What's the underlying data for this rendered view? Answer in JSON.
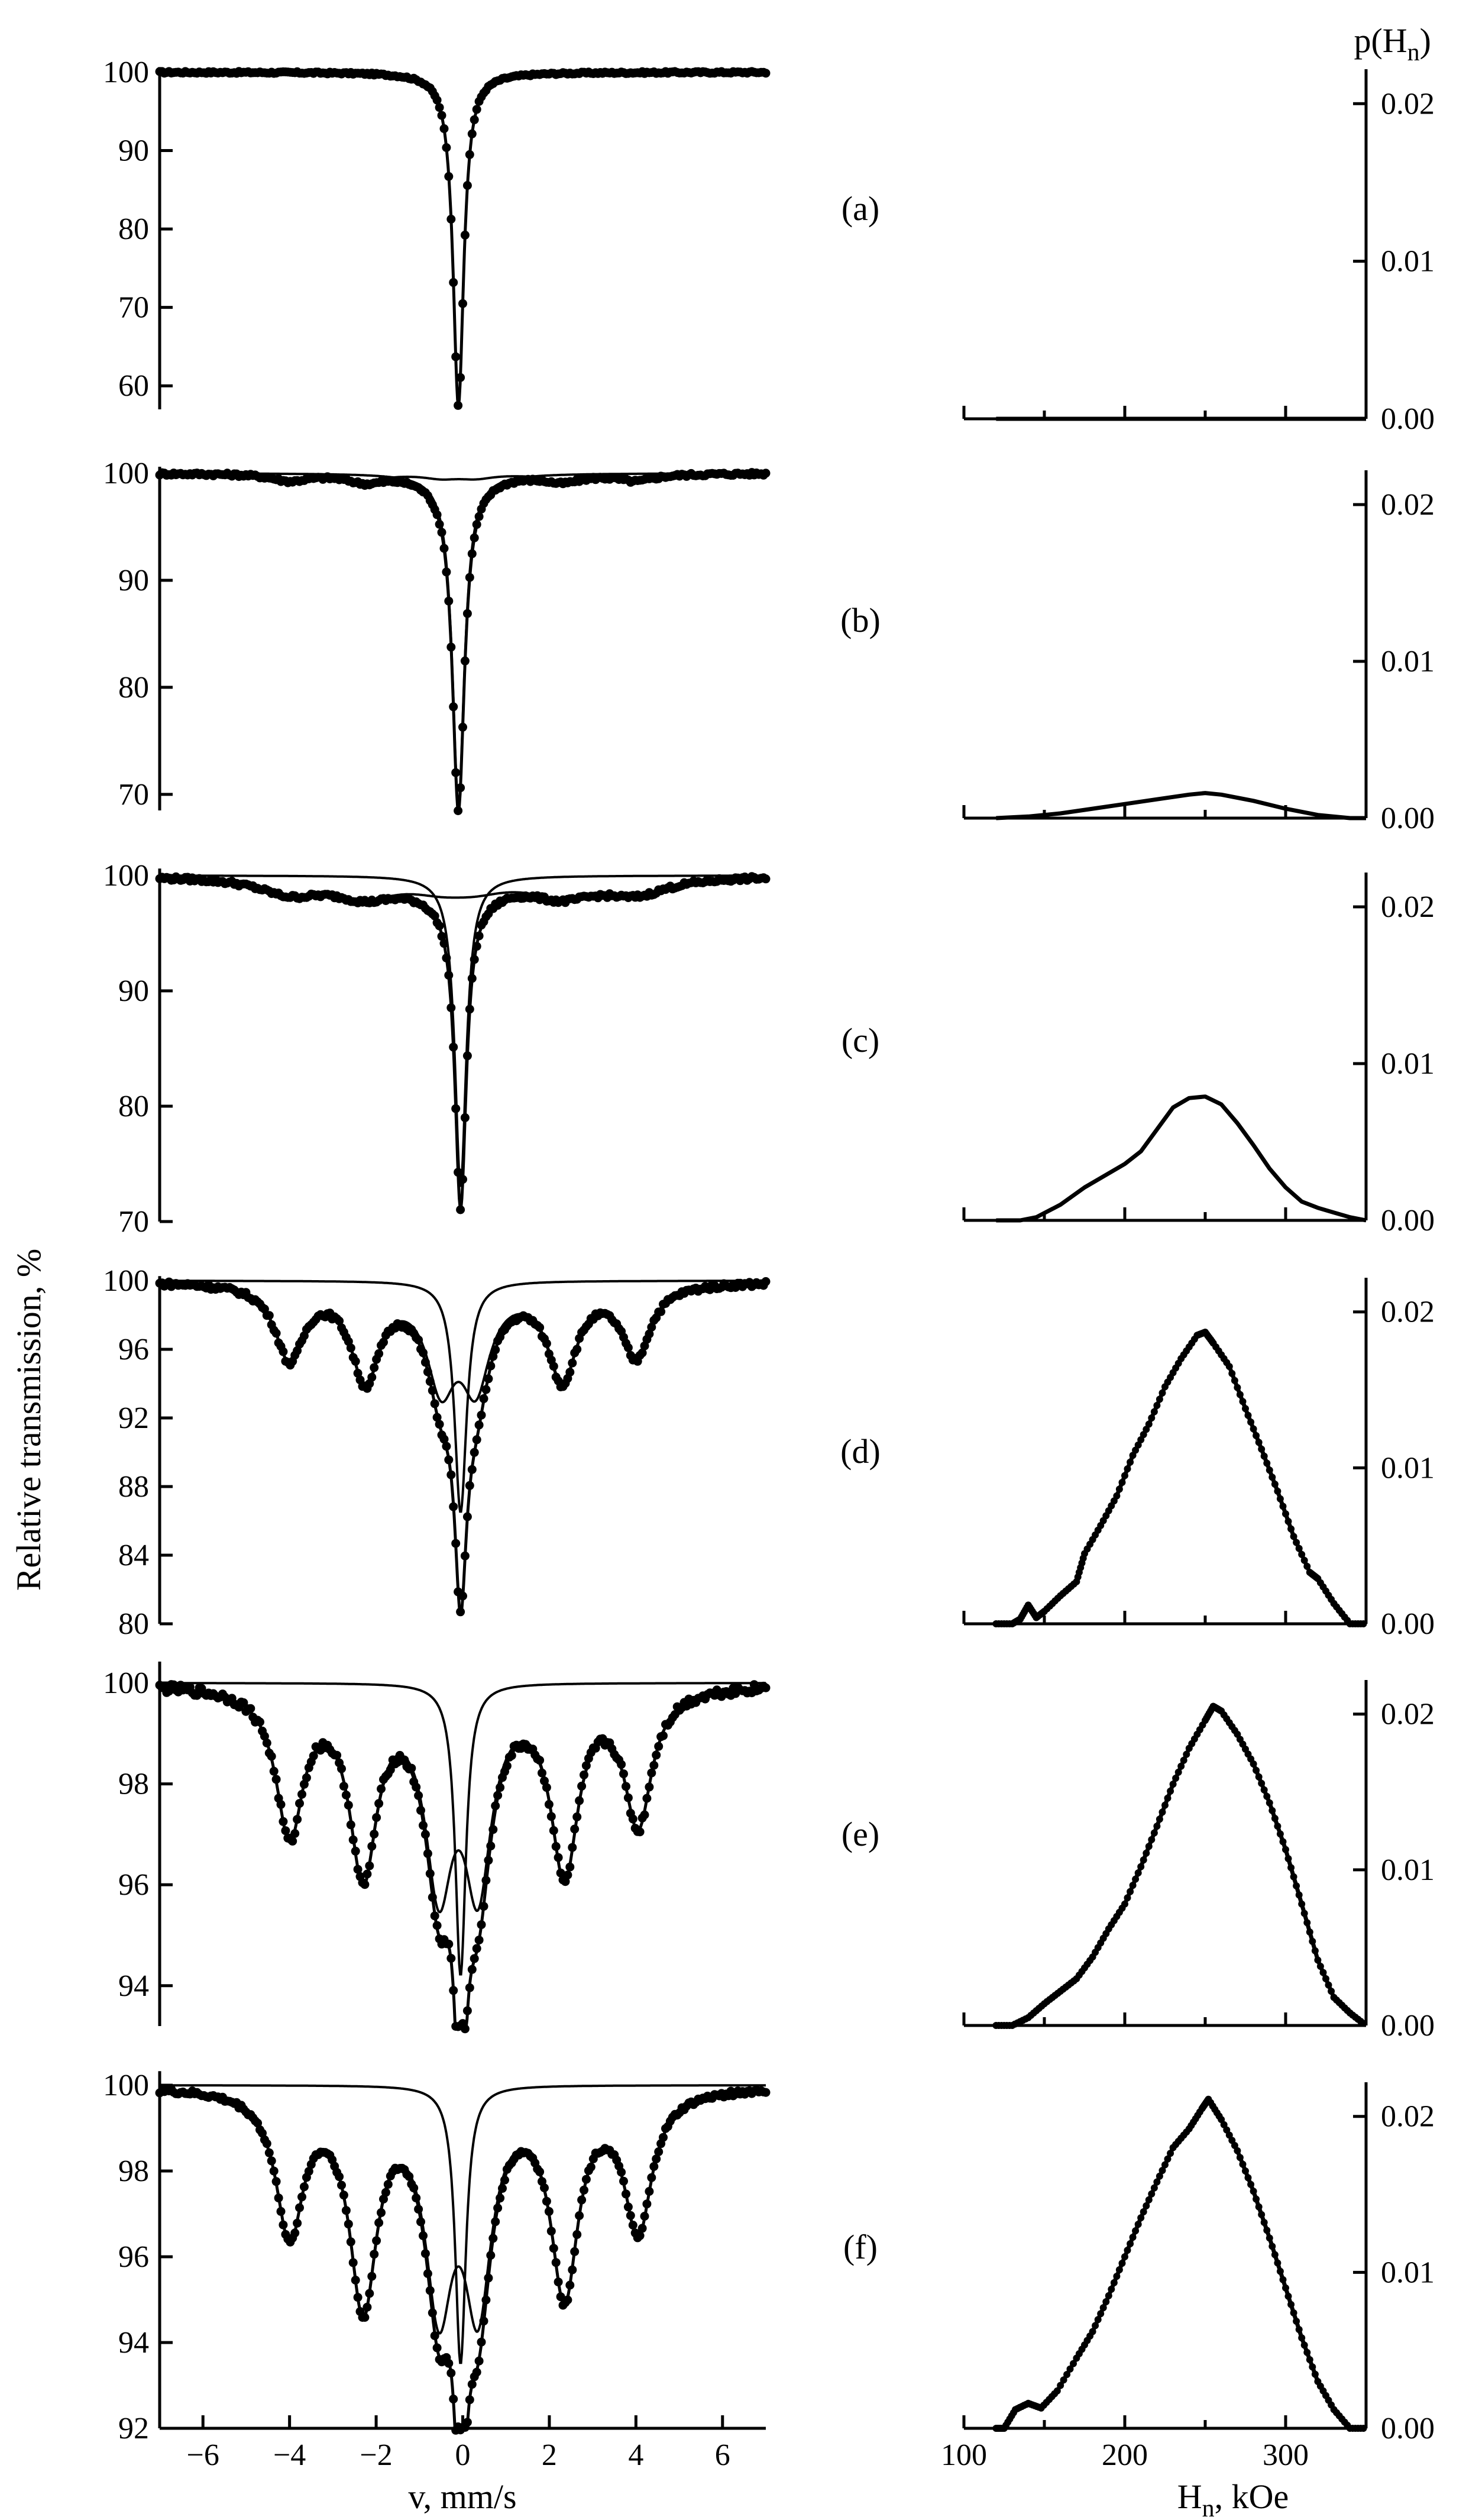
{
  "chart_data": [
    {
      "panel": "(a)",
      "type": "scatter",
      "xlabel": "v, mm/s",
      "ylabel": "Relative transmission, %",
      "xlim": [
        -7,
        7
      ],
      "ylim": [
        57,
        100.5
      ],
      "yticks": [
        "100",
        "90",
        "80",
        "70",
        "60"
      ],
      "ytick_values": [
        100,
        90,
        80,
        70,
        60
      ],
      "xticks": [
        "−6",
        "−4",
        "−2",
        "0",
        "2",
        "4",
        "6"
      ],
      "xtick_values": [
        -6,
        -4,
        -2,
        0,
        2,
        4,
        6
      ],
      "series": [
        {
          "role": "singlet",
          "center": -0.1,
          "depth": 42.5,
          "hwhm": 0.15
        },
        {
          "role": "sextet",
          "center": -0.1,
          "depth": 0,
          "hwhm": 0.5,
          "line_positions": [
            -4.0,
            -2.25,
            -0.5,
            0.3,
            2.3,
            4.0
          ],
          "line_weights": [
            0.9,
            1.0,
            0.55,
            0.55,
            1.0,
            0.9
          ]
        }
      ]
    },
    {
      "panel": "(b)",
      "type": "scatter",
      "xlabel": "v, mm/s",
      "ylabel": "Relative transmission, %",
      "xlim": [
        -7,
        7
      ],
      "ylim": [
        68.5,
        100.5
      ],
      "yticks": [
        "100",
        "90",
        "80",
        "70"
      ],
      "ytick_values": [
        100,
        90,
        80,
        70
      ],
      "xticks": [
        "−6",
        "−4",
        "−2",
        "0",
        "2",
        "4",
        "6"
      ],
      "xtick_values": [
        -6,
        -4,
        -2,
        0,
        2,
        4,
        6
      ],
      "series": [
        {
          "role": "singlet",
          "center": -0.1,
          "depth": 31,
          "hwhm": 0.17
        },
        {
          "role": "sextet",
          "center": -0.1,
          "depth": 0.7,
          "hwhm": 0.5,
          "line_positions": [
            -4.0,
            -2.25,
            -0.5,
            0.3,
            2.3,
            4.0
          ],
          "line_weights": [
            0.9,
            1.0,
            0.55,
            0.55,
            1.0,
            0.9
          ]
        }
      ]
    },
    {
      "panel": "(c)",
      "type": "scatter",
      "xlabel": "v, mm/s",
      "ylabel": "Relative transmission, %",
      "xlim": [
        -7,
        7
      ],
      "ylim": [
        70,
        100.5
      ],
      "yticks": [
        "100",
        "90",
        "80",
        "70"
      ],
      "ytick_values": [
        100,
        90,
        80,
        70
      ],
      "xticks": [
        "−6",
        "−4",
        "−2",
        "0",
        "2",
        "4",
        "6"
      ],
      "xtick_values": [
        -6,
        -4,
        -2,
        0,
        2,
        4,
        6
      ],
      "series": [
        {
          "role": "singlet",
          "center": -0.05,
          "depth": 27,
          "hwhm": 0.16
        },
        {
          "role": "sextet",
          "center": -0.05,
          "depth": 1.5,
          "hwhm": 0.9,
          "line_positions": [
            -4.0,
            -2.25,
            -0.5,
            0.3,
            2.3,
            4.0
          ],
          "line_weights": [
            0.9,
            1.0,
            0.55,
            0.55,
            1.0,
            0.9
          ]
        }
      ]
    },
    {
      "panel": "(d)",
      "type": "scatter",
      "xlabel": "v, mm/s",
      "ylabel": "Relative transmission, %",
      "xlim": [
        -7,
        7
      ],
      "ylim": [
        80,
        100.2
      ],
      "yticks": [
        "100",
        "96",
        "92",
        "88",
        "84",
        "80"
      ],
      "ytick_values": [
        100,
        96,
        92,
        88,
        84,
        80
      ],
      "xticks": [
        "−6",
        "−4",
        "−2",
        "0",
        "2",
        "4",
        "6"
      ],
      "xtick_values": [
        -6,
        -4,
        -2,
        0,
        2,
        4,
        6
      ],
      "series": [
        {
          "role": "singlet",
          "center": -0.05,
          "depth": 13.5,
          "hwhm": 0.17
        },
        {
          "role": "sextet",
          "center": -0.05,
          "depth": 5.6,
          "hwhm": 0.4,
          "line_positions": [
            -4.0,
            -2.25,
            -0.5,
            0.3,
            2.3,
            4.0
          ],
          "line_weights": [
            0.78,
            0.97,
            0.98,
            0.98,
            0.97,
            0.75
          ]
        }
      ]
    },
    {
      "panel": "(e)",
      "type": "scatter",
      "xlabel": "v, mm/s",
      "ylabel": "Relative transmission, %",
      "xlim": [
        -7,
        7
      ],
      "ylim": [
        93.2,
        100.4
      ],
      "yticks": [
        "100",
        "98",
        "96",
        "94"
      ],
      "ytick_values": [
        100,
        98,
        96,
        94
      ],
      "xticks": [
        "−6",
        "−4",
        "−2",
        "0",
        "2",
        "4",
        "6"
      ],
      "xtick_values": [
        -6,
        -4,
        -2,
        0,
        2,
        4,
        6
      ],
      "series": [
        {
          "role": "singlet",
          "center": -0.05,
          "depth": 5.8,
          "hwhm": 0.15
        },
        {
          "role": "sextet",
          "center": -0.05,
          "depth": 3.7,
          "hwhm": 0.38,
          "line_positions": [
            -4.0,
            -2.3,
            -0.55,
            0.35,
            2.35,
            4.05
          ],
          "line_weights": [
            0.78,
            0.97,
            1.0,
            1.0,
            0.97,
            0.72
          ]
        }
      ]
    },
    {
      "panel": "(f)",
      "type": "scatter",
      "xlabel": "v, mm/s",
      "ylabel": "Relative transmission, %",
      "xlim": [
        -7,
        7
      ],
      "ylim": [
        92,
        100.3
      ],
      "yticks": [
        "100",
        "98",
        "96",
        "94",
        "92"
      ],
      "ytick_values": [
        100,
        98,
        96,
        94,
        92
      ],
      "xticks": [
        "−6",
        "−4",
        "−2",
        "0",
        "2",
        "4",
        "6"
      ],
      "xtick_values": [
        -6,
        -4,
        -2,
        0,
        2,
        4,
        6
      ],
      "series": [
        {
          "role": "singlet",
          "center": -0.05,
          "depth": 6.5,
          "hwhm": 0.15
        },
        {
          "role": "sextet",
          "center": -0.05,
          "depth": 4.9,
          "hwhm": 0.38,
          "line_positions": [
            -4.0,
            -2.3,
            -0.55,
            0.35,
            2.35,
            4.05
          ],
          "line_weights": [
            0.68,
            1.0,
            0.96,
            0.96,
            0.95,
            0.66
          ]
        }
      ]
    },
    {
      "panel": "(a)",
      "type": "line",
      "ylabel": "p(H_n)",
      "xlabel": "H_n, kOe",
      "xlim": [
        100,
        350
      ],
      "ylim": [
        0,
        0.022
      ],
      "yticks": [
        "0.00",
        "0.01",
        "0.02"
      ],
      "ytick_values": [
        0,
        0.01,
        0.02
      ],
      "xticks": [
        "100",
        "200",
        "300"
      ],
      "xtick_values": [
        100,
        200,
        300
      ],
      "x": [
        120,
        150,
        180,
        210,
        240,
        270,
        300,
        330,
        350
      ],
      "y": [
        0,
        0,
        0,
        0,
        0,
        0,
        0,
        0,
        0
      ]
    },
    {
      "panel": "(b)",
      "type": "line",
      "ylabel": "p(H_n)",
      "xlabel": "H_n, kOe",
      "xlim": [
        100,
        350
      ],
      "ylim": [
        0,
        0.022
      ],
      "yticks": [
        "0.00",
        "0.01",
        "0.02"
      ],
      "ytick_values": [
        0,
        0.01,
        0.02
      ],
      "xticks": [
        "100",
        "200",
        "300"
      ],
      "xtick_values": [
        100,
        200,
        300
      ],
      "x": [
        120,
        140,
        160,
        180,
        200,
        220,
        240,
        250,
        260,
        280,
        300,
        320,
        340,
        350
      ],
      "y": [
        0,
        0.0001,
        0.0003,
        0.0006,
        0.0009,
        0.0012,
        0.0015,
        0.0016,
        0.0015,
        0.0011,
        0.0006,
        0.0002,
        0,
        0
      ]
    },
    {
      "panel": "(c)",
      "type": "line",
      "ylabel": "p(H_n)",
      "xlabel": "H_n, kOe",
      "xlim": [
        100,
        350
      ],
      "ylim": [
        0,
        0.022
      ],
      "yticks": [
        "0.00",
        "0.01",
        "0.02"
      ],
      "ytick_values": [
        0,
        0.01,
        0.02
      ],
      "xticks": [
        "100",
        "200",
        "300"
      ],
      "xtick_values": [
        100,
        200,
        300
      ],
      "x": [
        120,
        135,
        145,
        160,
        175,
        190,
        200,
        210,
        220,
        230,
        240,
        250,
        260,
        270,
        280,
        290,
        300,
        310,
        320,
        330,
        340,
        350
      ],
      "y": [
        0,
        0,
        0.0002,
        0.001,
        0.0021,
        0.003,
        0.0036,
        0.0044,
        0.0058,
        0.0072,
        0.0078,
        0.0079,
        0.0074,
        0.0062,
        0.0048,
        0.0033,
        0.0021,
        0.0012,
        0.0008,
        0.0005,
        0.0002,
        0
      ]
    },
    {
      "panel": "(d)",
      "type": "line",
      "ylabel": "p(H_n)",
      "xlabel": "H_n, kOe",
      "xlim": [
        100,
        350
      ],
      "ylim": [
        0,
        0.022
      ],
      "yticks": [
        "0.00",
        "0.01",
        "0.02"
      ],
      "ytick_values": [
        0,
        0.01,
        0.02
      ],
      "xticks": [
        "100",
        "200",
        "300"
      ],
      "xtick_values": [
        100,
        200,
        300
      ],
      "x": [
        120,
        130,
        135,
        140,
        145,
        150,
        160,
        170,
        175,
        185,
        195,
        205,
        215,
        225,
        235,
        245,
        250,
        255,
        265,
        275,
        285,
        295,
        305,
        315,
        320,
        330,
        340,
        350
      ],
      "y": [
        0,
        0,
        0.0003,
        0.0012,
        0.0004,
        0.0008,
        0.0018,
        0.0027,
        0.0045,
        0.0063,
        0.0082,
        0.0108,
        0.0128,
        0.0152,
        0.017,
        0.0185,
        0.0187,
        0.018,
        0.0165,
        0.0138,
        0.0112,
        0.0085,
        0.0056,
        0.0033,
        0.0029,
        0.0013,
        0,
        0
      ]
    },
    {
      "panel": "(e)",
      "type": "line",
      "ylabel": "p(H_n)",
      "xlabel": "H_n, kOe",
      "xlim": [
        100,
        350
      ],
      "ylim": [
        0,
        0.022
      ],
      "yticks": [
        "0.00",
        "0.01",
        "0.02"
      ],
      "ytick_values": [
        0,
        0.01,
        0.02
      ],
      "xticks": [
        "100",
        "200",
        "300"
      ],
      "xtick_values": [
        100,
        200,
        300
      ],
      "x": [
        120,
        130,
        140,
        150,
        160,
        170,
        180,
        190,
        200,
        210,
        220,
        230,
        240,
        250,
        255,
        260,
        270,
        280,
        290,
        300,
        310,
        320,
        330,
        340,
        350
      ],
      "y": [
        0,
        0,
        0.0005,
        0.0014,
        0.0022,
        0.003,
        0.0044,
        0.0062,
        0.0078,
        0.0102,
        0.0128,
        0.0155,
        0.0178,
        0.0196,
        0.0205,
        0.0202,
        0.0187,
        0.0168,
        0.0143,
        0.0113,
        0.0078,
        0.0042,
        0.0018,
        0.0008,
        0
      ]
    },
    {
      "panel": "(f)",
      "type": "line",
      "ylabel": "p(H_n)",
      "xlabel": "H_n, kOe",
      "xlim": [
        100,
        350
      ],
      "ylim": [
        0,
        0.022
      ],
      "yticks": [
        "0.00",
        "0.01",
        "0.02"
      ],
      "ytick_values": [
        0,
        0.01,
        0.02
      ],
      "xticks": [
        "100",
        "200",
        "300"
      ],
      "xtick_values": [
        100,
        200,
        300
      ],
      "x": [
        120,
        125,
        132,
        140,
        148,
        158,
        170,
        180,
        190,
        200,
        210,
        220,
        230,
        240,
        248,
        252,
        260,
        270,
        280,
        290,
        300,
        310,
        320,
        330,
        340,
        350
      ],
      "y": [
        0,
        0,
        0.0012,
        0.0016,
        0.0013,
        0.0024,
        0.0045,
        0.0062,
        0.0085,
        0.011,
        0.0135,
        0.0158,
        0.018,
        0.0192,
        0.0205,
        0.0211,
        0.0198,
        0.0178,
        0.0152,
        0.0122,
        0.009,
        0.0058,
        0.003,
        0.0012,
        0,
        0
      ]
    }
  ],
  "labels": {
    "left_ylabel": "Relative transmission, %",
    "left_xlabel": "v, mm/s",
    "right_ylabel_main": "p(H",
    "right_ylabel_sub": "n",
    "right_ylabel_close": ")",
    "right_xlabel_main": "H",
    "right_xlabel_sub": "n",
    "right_xlabel_rest": ", kOe"
  }
}
